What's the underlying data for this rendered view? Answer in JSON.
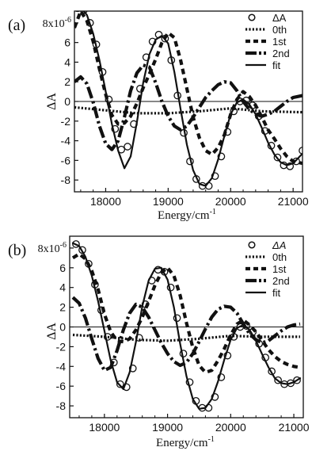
{
  "charts": [
    {
      "panel_label": "(a)",
      "ylabel": "ΔA",
      "xlabel_base": "Energy/cm",
      "xlabel_sup": "-1",
      "ytick_top_label": "8x10",
      "ytick_top_exp": "-6",
      "legend": [
        "ΔA",
        "0th",
        "1st",
        "2nd",
        "fit"
      ]
    },
    {
      "panel_label": "(b)",
      "ylabel": "ΔA",
      "xlabel_base": "Energy/cm",
      "xlabel_sup": "-1",
      "ytick_top_label": "8x10",
      "ytick_top_exp": "-6",
      "legend": [
        "ΔA",
        "0th",
        "1st",
        "2nd",
        "fit"
      ]
    }
  ],
  "chart_data": [
    {
      "type": "line",
      "xlim": [
        17500,
        21150
      ],
      "ylim": [
        -9.2,
        9.2
      ],
      "xticks": [
        18000,
        19000,
        20000,
        21000
      ],
      "yticks": [
        8,
        6,
        4,
        2,
        0,
        -2,
        -4,
        -6,
        -8
      ],
      "ytick_labels": [
        "8x10-6",
        "6",
        "4",
        "2",
        "0",
        "-2",
        "-4",
        "-6",
        "-8"
      ],
      "series": [
        {
          "name": "ΔA",
          "style": "circles",
          "x": [
            17550,
            17650,
            17750,
            17850,
            17950,
            18050,
            18150,
            18250,
            18350,
            18450,
            18550,
            18650,
            18750,
            18850,
            18950,
            19050,
            19150,
            19250,
            19350,
            19450,
            19550,
            19650,
            19750,
            19850,
            19950,
            20050,
            20150,
            20250,
            20350,
            20450,
            20550,
            20650,
            20750,
            20850,
            20950,
            21050,
            21150
          ],
          "y": [
            9.5,
            9.3,
            8.0,
            5.8,
            3.0,
            0.2,
            -2.8,
            -4.9,
            -4.6,
            -2.3,
            1.3,
            4.5,
            6.1,
            6.8,
            6.4,
            4.2,
            0.6,
            -3.2,
            -6.1,
            -7.9,
            -8.6,
            -8.6,
            -7.6,
            -5.6,
            -3.1,
            -1.0,
            0.0,
            0.1,
            -0.4,
            -1.5,
            -3.0,
            -4.5,
            -5.7,
            -6.5,
            -6.6,
            -6.1,
            -5.0
          ]
        },
        {
          "name": "0th",
          "style": "dotted",
          "x": [
            17500,
            18000,
            18500,
            19000,
            19500,
            20000,
            20500,
            21150
          ],
          "y": [
            -0.6,
            -0.9,
            -1.2,
            -1.2,
            -1.0,
            -0.7,
            -1.0,
            -1.1
          ]
        },
        {
          "name": "1st",
          "style": "dashed",
          "x": [
            17500,
            17600,
            17700,
            17800,
            17900,
            18000,
            18100,
            18200,
            18300,
            18400,
            18500,
            18600,
            18700,
            18800,
            18900,
            19000,
            19100,
            19200,
            19300,
            19400,
            19500,
            19600,
            19700,
            19800,
            19900,
            20000,
            20100,
            20200,
            20300,
            20400,
            20500,
            20600,
            20700,
            20800,
            20900,
            21000,
            21150
          ],
          "y": [
            7.5,
            9.2,
            8.2,
            6.1,
            3.3,
            0.7,
            -1.4,
            -2.3,
            -2.2,
            -1.5,
            -0.2,
            1.4,
            2.8,
            4.3,
            6.0,
            7.0,
            6.5,
            4.2,
            1.3,
            -1.6,
            -3.7,
            -5.0,
            -5.4,
            -4.7,
            -3.4,
            -1.3,
            0.2,
            1.0,
            0.5,
            -0.4,
            -1.6,
            -2.9,
            -3.8,
            -4.8,
            -5.6,
            -6.1,
            -6.3
          ]
        },
        {
          "name": "2nd",
          "style": "dash-dot",
          "x": [
            17500,
            17600,
            17700,
            17800,
            17900,
            18000,
            18100,
            18200,
            18300,
            18400,
            18500,
            18600,
            18700,
            18800,
            18900,
            19000,
            19100,
            19200,
            19300,
            19400,
            19500,
            19600,
            19700,
            19800,
            19900,
            20000,
            20100,
            20200,
            20300,
            20400,
            20500,
            20600,
            20700,
            20800,
            20900,
            21000,
            21150
          ],
          "y": [
            2.0,
            2.5,
            1.8,
            -0.1,
            -2.5,
            -4.3,
            -4.9,
            -4.0,
            -1.6,
            1.1,
            2.9,
            3.7,
            3.5,
            1.9,
            0.0,
            -1.5,
            -2.5,
            -2.9,
            -2.5,
            -1.6,
            -0.6,
            0.4,
            1.1,
            1.7,
            2.0,
            1.9,
            1.1,
            0.0,
            -0.8,
            -1.3,
            -1.5,
            -1.3,
            -1.0,
            -0.5,
            0.0,
            0.4,
            0.6
          ]
        },
        {
          "name": "fit",
          "style": "solid",
          "x": [
            17500,
            17600,
            17700,
            17800,
            17900,
            18000,
            18100,
            18200,
            18300,
            18400,
            18500,
            18600,
            18700,
            18800,
            18900,
            19000,
            19100,
            19200,
            19300,
            19400,
            19500,
            19600,
            19700,
            19800,
            19900,
            20000,
            20100,
            20200,
            20300,
            20400,
            20500,
            20600,
            20700,
            20800,
            20900,
            21000,
            21150
          ],
          "y": [
            9.4,
            9.6,
            8.8,
            6.9,
            4.2,
            1.0,
            -2.3,
            -5.0,
            -6.8,
            -5.6,
            -2.1,
            1.9,
            4.8,
            6.3,
            6.7,
            5.9,
            3.0,
            -0.8,
            -4.4,
            -7.0,
            -8.4,
            -8.6,
            -7.8,
            -5.9,
            -3.5,
            -1.3,
            -0.1,
            0.2,
            -0.3,
            -1.3,
            -2.7,
            -4.2,
            -5.4,
            -6.2,
            -6.5,
            -6.3,
            -5.3
          ]
        }
      ]
    },
    {
      "type": "line",
      "xlim": [
        17450,
        21150
      ],
      "ylim": [
        -9.2,
        9.2
      ],
      "xticks": [
        18000,
        19000,
        20000,
        21000
      ],
      "yticks": [
        8,
        6,
        4,
        2,
        0,
        -2,
        -4,
        -6,
        -8
      ],
      "ytick_labels": [
        "8x10-6",
        "6",
        "4",
        "2",
        "0",
        "-2",
        "-4",
        "-6",
        "-8"
      ],
      "series": [
        {
          "name": "ΔA",
          "style": "circles",
          "x": [
            17550,
            17650,
            17750,
            17850,
            17950,
            18050,
            18150,
            18250,
            18350,
            18450,
            18550,
            18650,
            18750,
            18850,
            18950,
            19050,
            19150,
            19250,
            19350,
            19450,
            19550,
            19650,
            19750,
            19850,
            19950,
            20050,
            20150,
            20250,
            20350,
            20450,
            20550,
            20650,
            20750,
            20850,
            20950,
            21050
          ],
          "y": [
            8.4,
            7.8,
            6.4,
            4.3,
            1.7,
            -1.0,
            -3.6,
            -5.8,
            -6.1,
            -4.2,
            -1.1,
            2.3,
            4.7,
            5.8,
            5.6,
            4.0,
            0.9,
            -2.7,
            -5.6,
            -7.5,
            -8.2,
            -8.2,
            -7.1,
            -5.1,
            -2.9,
            -1.0,
            0.0,
            0.1,
            -0.5,
            -1.7,
            -3.1,
            -4.5,
            -5.4,
            -5.8,
            -5.7,
            -5.4
          ]
        },
        {
          "name": "0th",
          "style": "dotted",
          "x": [
            17500,
            18000,
            18500,
            19000,
            19500,
            20000,
            20500,
            21100
          ],
          "y": [
            -0.8,
            -1.0,
            -1.3,
            -1.4,
            -1.2,
            -0.9,
            -1.0,
            -1.0
          ]
        },
        {
          "name": "1st",
          "style": "dashed",
          "x": [
            17500,
            17600,
            17700,
            17800,
            17900,
            18000,
            18100,
            18200,
            18300,
            18400,
            18500,
            18600,
            18700,
            18800,
            18900,
            19000,
            19100,
            19200,
            19300,
            19400,
            19500,
            19600,
            19700,
            19800,
            19900,
            20000,
            20100,
            20200,
            20300,
            20400,
            20500,
            20600,
            20700,
            20800,
            20900,
            21000,
            21100
          ],
          "y": [
            7.0,
            7.4,
            6.9,
            5.7,
            3.8,
            1.3,
            -0.5,
            -1.4,
            -1.5,
            -1.2,
            -0.3,
            1.0,
            2.6,
            4.2,
            5.5,
            6.0,
            5.2,
            3.2,
            0.4,
            -2.1,
            -3.9,
            -4.6,
            -4.4,
            -3.4,
            -2.2,
            -0.8,
            0.3,
            0.7,
            0.2,
            -0.5,
            -1.4,
            -2.3,
            -3.0,
            -3.5,
            -3.8,
            -4.0,
            -4.1
          ]
        },
        {
          "name": "2nd",
          "style": "dash-dot",
          "x": [
            17500,
            17600,
            17700,
            17800,
            17900,
            18000,
            18100,
            18200,
            18300,
            18400,
            18500,
            18600,
            18700,
            18800,
            18900,
            19000,
            19100,
            19200,
            19300,
            19400,
            19500,
            19600,
            19700,
            19800,
            19900,
            20000,
            20100,
            20200,
            20300,
            20400,
            20500,
            20600,
            20700,
            20800,
            20900,
            21000,
            21100
          ],
          "y": [
            3.0,
            2.4,
            0.9,
            -1.2,
            -3.2,
            -4.4,
            -4.1,
            -2.4,
            -0.3,
            1.4,
            2.3,
            2.0,
            1.0,
            -0.3,
            -1.6,
            -2.7,
            -3.5,
            -3.9,
            -3.6,
            -2.7,
            -1.5,
            -0.2,
            1.0,
            1.8,
            2.1,
            2.0,
            1.4,
            0.3,
            -0.7,
            -1.3,
            -1.6,
            -1.4,
            -0.9,
            -0.4,
            0.0,
            0.2,
            0.3
          ]
        },
        {
          "name": "fit",
          "style": "solid",
          "x": [
            17500,
            17600,
            17700,
            17800,
            17900,
            18000,
            18100,
            18200,
            18300,
            18400,
            18500,
            18600,
            18700,
            18800,
            18900,
            19000,
            19100,
            19200,
            19300,
            19400,
            19500,
            19600,
            19700,
            19800,
            19900,
            20000,
            20100,
            20200,
            20300,
            20400,
            20500,
            20600,
            20700,
            20800,
            20900,
            21000,
            21100
          ],
          "y": [
            8.5,
            8.2,
            7.1,
            5.2,
            2.6,
            -0.4,
            -3.4,
            -5.6,
            -6.3,
            -4.6,
            -1.5,
            2.1,
            4.7,
            5.9,
            6.0,
            4.8,
            2.0,
            -1.7,
            -5.0,
            -7.3,
            -8.3,
            -8.2,
            -7.3,
            -5.5,
            -3.3,
            -1.3,
            -0.1,
            0.2,
            -0.3,
            -1.4,
            -2.8,
            -4.1,
            -5.2,
            -5.7,
            -5.8,
            -5.6,
            -5.2
          ]
        }
      ]
    }
  ]
}
